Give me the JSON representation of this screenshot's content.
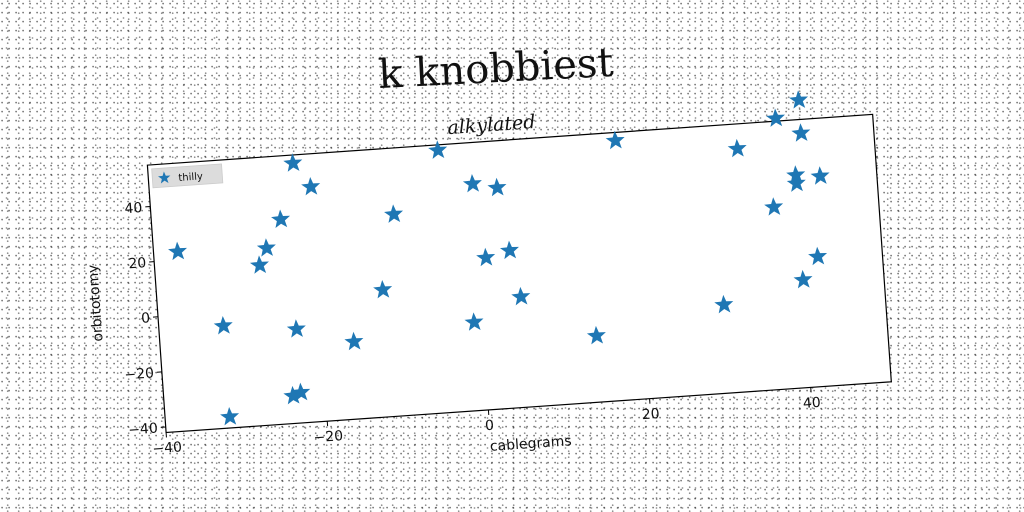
{
  "suptitle": "k knobbiest",
  "chart_data": {
    "type": "scatter",
    "title": "alkylated",
    "xlabel": "cablegrams",
    "ylabel": "orbitotomy",
    "xlim": [
      -40,
      50
    ],
    "ylim": [
      -42,
      55
    ],
    "xticks": [
      -40,
      -20,
      0,
      20,
      40
    ],
    "yticks": [
      -40,
      -20,
      0,
      20,
      40
    ],
    "grid": false,
    "legend": "top-left",
    "marker": "star",
    "color": "#1f77b4",
    "series": [
      {
        "name": "thilly",
        "points": [
          [
            -37,
            23
          ],
          [
            -32,
            -5
          ],
          [
            -32,
            -38
          ],
          [
            -27,
            16
          ],
          [
            -26,
            22
          ],
          [
            -24,
            32
          ],
          [
            -22,
            52
          ],
          [
            -20,
            43
          ],
          [
            -23,
            -8
          ],
          [
            -24,
            -32
          ],
          [
            -23,
            -31
          ],
          [
            -16,
            -14
          ],
          [
            -12,
            4
          ],
          [
            -10,
            31
          ],
          [
            -4,
            53
          ],
          [
            0,
            40
          ],
          [
            3,
            38
          ],
          [
            1,
            13
          ],
          [
            4,
            15
          ],
          [
            5,
            -2
          ],
          [
            -1,
            -10
          ],
          [
            14,
            -18
          ],
          [
            18,
            52
          ],
          [
            30,
            -10
          ],
          [
            33,
            46
          ],
          [
            37,
            24
          ],
          [
            38,
            56
          ],
          [
            40,
            -3
          ],
          [
            40,
            35
          ],
          [
            40,
            32
          ],
          [
            41,
            50
          ],
          [
            42,
            5
          ],
          [
            43,
            34
          ],
          [
            41,
            62
          ]
        ]
      }
    ]
  }
}
